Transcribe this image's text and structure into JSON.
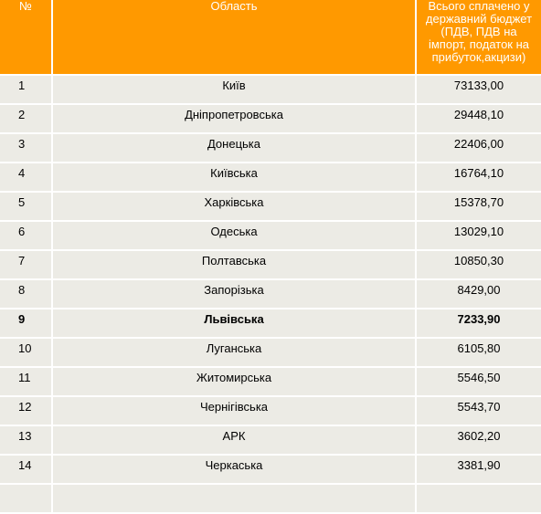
{
  "headers": {
    "num": "№",
    "region": "Область",
    "value": "Всього сплачено у державний бюджет (ПДВ, ПДВ на імпорт, податок на прибуток,акцизи)"
  },
  "rows": [
    {
      "num": "1",
      "region": "Київ",
      "value": "73133,00"
    },
    {
      "num": "2",
      "region": "Дніпропетровська",
      "value": "29448,10"
    },
    {
      "num": "3",
      "region": "Донецька",
      "value": "22406,00"
    },
    {
      "num": "4",
      "region": "Київська",
      "value": "16764,10"
    },
    {
      "num": "5",
      "region": "Харківська",
      "value": "15378,70"
    },
    {
      "num": "6",
      "region": "Одеська",
      "value": "13029,10"
    },
    {
      "num": "7",
      "region": "Полтавська",
      "value": "10850,30"
    },
    {
      "num": "8",
      "region": "Запорізька",
      "value": "8429,00"
    },
    {
      "num": "9",
      "region": "Львівська",
      "value": "7233,90"
    },
    {
      "num": "10",
      "region": "Луганська",
      "value": "6105,80"
    },
    {
      "num": "11",
      "region": "Житомирська",
      "value": "5546,50"
    },
    {
      "num": "12",
      "region": "Чернігівська",
      "value": "5543,70"
    },
    {
      "num": "13",
      "region": "АРК",
      "value": "3602,20"
    },
    {
      "num": "14",
      "region": "Черкаська",
      "value": "3381,90"
    },
    {
      "num": "",
      "region": "",
      "value": ""
    }
  ]
}
